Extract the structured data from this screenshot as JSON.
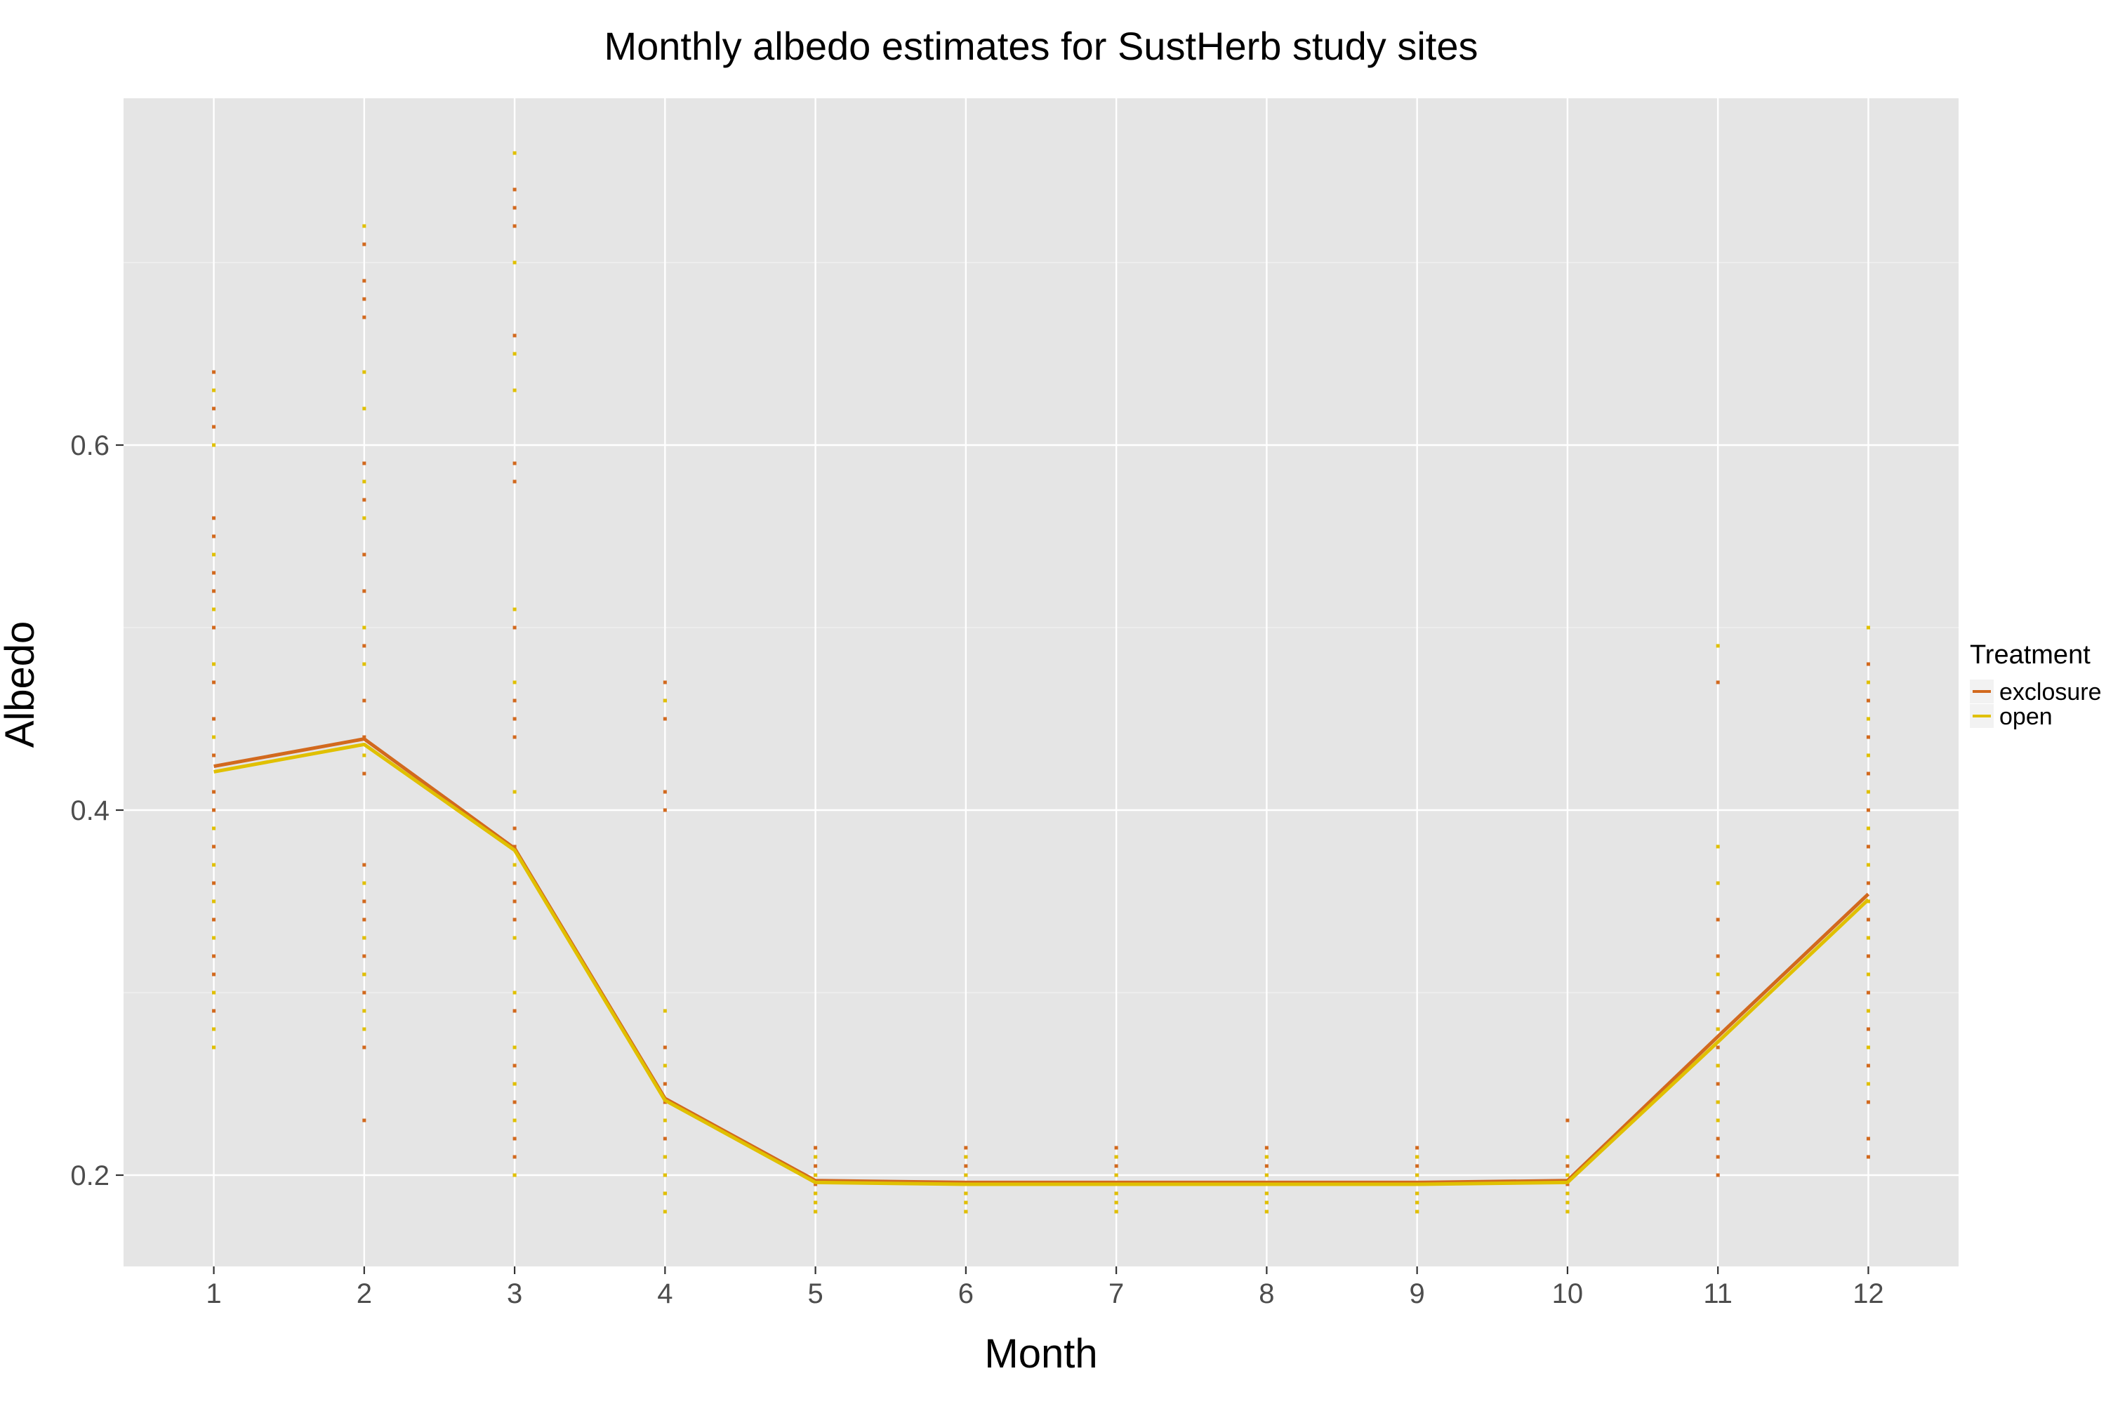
{
  "chart_data": {
    "type": "line",
    "title": "Monthly albedo estimates for SustHerb study sites",
    "xlabel": "Month",
    "ylabel": "Albedo",
    "xlim": [
      0.4,
      12.6
    ],
    "ylim": [
      0.15,
      0.79
    ],
    "x_ticks": [
      1,
      2,
      3,
      4,
      5,
      6,
      7,
      8,
      9,
      10,
      11,
      12
    ],
    "y_ticks": [
      0.2,
      0.4,
      0.6
    ],
    "y_tick_labels": [
      "0.2",
      "0.4",
      "0.6"
    ],
    "grid": true,
    "legend": {
      "title": "Treatment",
      "position": "right"
    },
    "series": [
      {
        "name": "exclosure",
        "color": "#d2691e",
        "x": [
          1,
          2,
          3,
          4,
          5,
          6,
          7,
          8,
          9,
          10,
          11,
          12
        ],
        "values": [
          0.424,
          0.439,
          0.379,
          0.242,
          0.197,
          0.196,
          0.196,
          0.196,
          0.196,
          0.197,
          0.276,
          0.354
        ],
        "points": [
          [
            1,
            0.64,
            0.62,
            0.61,
            0.56,
            0.55,
            0.53,
            0.52,
            0.5,
            0.47,
            0.45,
            0.43,
            0.41,
            0.4,
            0.38,
            0.36,
            0.34,
            0.32,
            0.31,
            0.3,
            0.29,
            0.28,
            0.27
          ],
          [
            2,
            0.71,
            0.69,
            0.68,
            0.67,
            0.59,
            0.57,
            0.54,
            0.52,
            0.49,
            0.46,
            0.44,
            0.42,
            0.37,
            0.35,
            0.34,
            0.33,
            0.32,
            0.31,
            0.3,
            0.27,
            0.23
          ],
          [
            3,
            0.74,
            0.73,
            0.72,
            0.66,
            0.59,
            0.58,
            0.5,
            0.46,
            0.45,
            0.44,
            0.39,
            0.38,
            0.36,
            0.35,
            0.34,
            0.29,
            0.26,
            0.25,
            0.24,
            0.22,
            0.21,
            0.2
          ],
          [
            4,
            0.47,
            0.46,
            0.45,
            0.41,
            0.4,
            0.27,
            0.25,
            0.24,
            0.22,
            0.21,
            0.2,
            0.19
          ],
          [
            5,
            0.215,
            0.21,
            0.205,
            0.2,
            0.195,
            0.19,
            0.185,
            0.18
          ],
          [
            6,
            0.215,
            0.21,
            0.205,
            0.2,
            0.195,
            0.19,
            0.185,
            0.18
          ],
          [
            7,
            0.215,
            0.21,
            0.205,
            0.2,
            0.195,
            0.19,
            0.185,
            0.18
          ],
          [
            8,
            0.215,
            0.21,
            0.205,
            0.2,
            0.195,
            0.19,
            0.185,
            0.18
          ],
          [
            9,
            0.215,
            0.21,
            0.205,
            0.2,
            0.195,
            0.19,
            0.185,
            0.18
          ],
          [
            10,
            0.23,
            0.21,
            0.205,
            0.2,
            0.195,
            0.19,
            0.185,
            0.18
          ],
          [
            11,
            0.47,
            0.34,
            0.32,
            0.3,
            0.29,
            0.28,
            0.27,
            0.26,
            0.25,
            0.24,
            0.22,
            0.21,
            0.2
          ],
          [
            12,
            0.48,
            0.46,
            0.44,
            0.42,
            0.4,
            0.38,
            0.36,
            0.35,
            0.34,
            0.33,
            0.32,
            0.3,
            0.28,
            0.26,
            0.24,
            0.22,
            0.21
          ]
        ]
      },
      {
        "name": "open",
        "color": "#e0c000",
        "x": [
          1,
          2,
          3,
          4,
          5,
          6,
          7,
          8,
          9,
          10,
          11,
          12
        ],
        "values": [
          0.421,
          0.436,
          0.378,
          0.241,
          0.196,
          0.195,
          0.195,
          0.195,
          0.195,
          0.196,
          0.273,
          0.351
        ],
        "points": [
          [
            1,
            0.63,
            0.6,
            0.54,
            0.51,
            0.48,
            0.44,
            0.39,
            0.37,
            0.35,
            0.33,
            0.3,
            0.28,
            0.27
          ],
          [
            2,
            0.72,
            0.64,
            0.62,
            0.58,
            0.56,
            0.5,
            0.48,
            0.43,
            0.36,
            0.33,
            0.31,
            0.29,
            0.28
          ],
          [
            3,
            0.76,
            0.7,
            0.65,
            0.63,
            0.51,
            0.47,
            0.41,
            0.37,
            0.33,
            0.3,
            0.27,
            0.25,
            0.23,
            0.2
          ],
          [
            4,
            0.46,
            0.29,
            0.26,
            0.23,
            0.21,
            0.2,
            0.19,
            0.18
          ],
          [
            5,
            0.21,
            0.2,
            0.19,
            0.185,
            0.18
          ],
          [
            6,
            0.21,
            0.2,
            0.19,
            0.185,
            0.18
          ],
          [
            7,
            0.21,
            0.2,
            0.19,
            0.185,
            0.18
          ],
          [
            8,
            0.21,
            0.2,
            0.19,
            0.185,
            0.18
          ],
          [
            9,
            0.21,
            0.2,
            0.19,
            0.185,
            0.18
          ],
          [
            10,
            0.21,
            0.2,
            0.19,
            0.185,
            0.18
          ],
          [
            11,
            0.49,
            0.38,
            0.36,
            0.31,
            0.28,
            0.26,
            0.24,
            0.23
          ],
          [
            12,
            0.5,
            0.47,
            0.45,
            0.43,
            0.41,
            0.39,
            0.37,
            0.35,
            0.33,
            0.31,
            0.29,
            0.27,
            0.25
          ]
        ]
      }
    ]
  }
}
